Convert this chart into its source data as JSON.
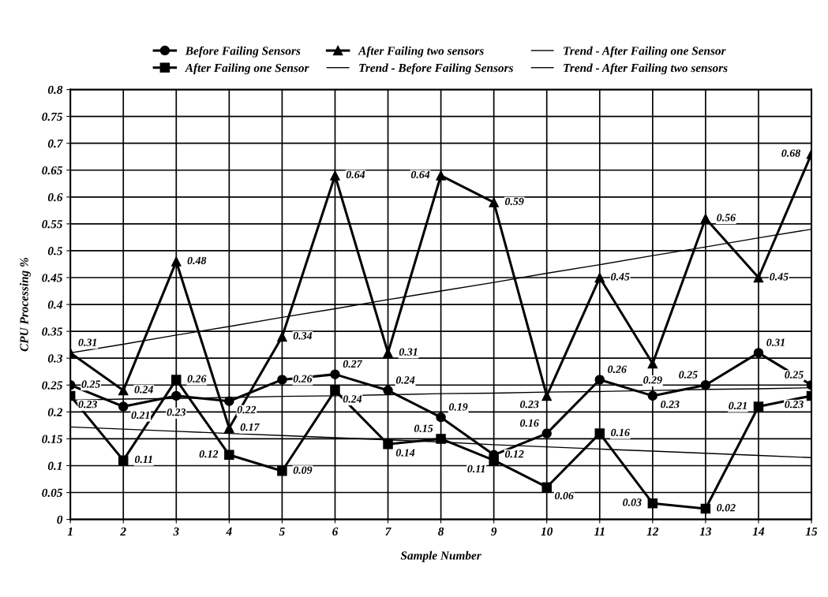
{
  "chart_data": {
    "type": "line",
    "xlabel": "Sample Number",
    "ylabel": "CPU Processing %",
    "x": [
      1,
      2,
      3,
      4,
      5,
      6,
      7,
      8,
      9,
      10,
      11,
      12,
      13,
      14,
      15
    ],
    "xlim": [
      1,
      15
    ],
    "xticks": [
      1,
      2,
      3,
      4,
      5,
      6,
      7,
      8,
      9,
      10,
      11,
      12,
      13,
      14,
      15
    ],
    "ylim": [
      0,
      0.8
    ],
    "yticks": [
      0,
      0.05,
      0.1,
      0.15,
      0.2,
      0.25,
      0.3,
      0.35,
      0.4,
      0.45,
      0.5,
      0.55,
      0.6,
      0.65,
      0.7,
      0.75,
      0.8
    ],
    "grid": true,
    "legend": "top",
    "data_labels": true,
    "line_style": "solid",
    "series": [
      {
        "name": "Before Failing Sensors",
        "color": "#000000",
        "marker": "circle",
        "values": [
          0.25,
          0.21,
          0.23,
          0.22,
          0.26,
          0.27,
          0.24,
          0.19,
          0.12,
          0.16,
          0.26,
          0.23,
          0.25,
          0.31,
          0.25
        ]
      },
      {
        "name": "After Failing one Sensor",
        "color": "#000000",
        "marker": "square",
        "values": [
          0.23,
          0.11,
          0.26,
          0.12,
          0.09,
          0.24,
          0.14,
          0.15,
          0.11,
          0.06,
          0.16,
          0.03,
          0.02,
          0.21,
          0.23
        ]
      },
      {
        "name": "After Failing two sensors",
        "color": "#000000",
        "marker": "triangle",
        "values": [
          0.31,
          0.24,
          0.48,
          0.17,
          0.34,
          0.64,
          0.31,
          0.64,
          0.59,
          0.23,
          0.45,
          0.29,
          0.56,
          0.45,
          0.68
        ]
      },
      {
        "name": "Trend - Before Failing Sensors",
        "color": "#000000",
        "marker": "none",
        "data_labels": false,
        "values": [
          0.222,
          0.224,
          0.225,
          0.227,
          0.229,
          0.23,
          0.232,
          0.234,
          0.235,
          0.237,
          0.238,
          0.24,
          0.242,
          0.243,
          0.245
        ]
      },
      {
        "name": "Trend - After Failing one Sensor",
        "color": "#000000",
        "marker": "none",
        "data_labels": false,
        "values": [
          0.172,
          0.168,
          0.164,
          0.16,
          0.156,
          0.152,
          0.148,
          0.144,
          0.139,
          0.135,
          0.131,
          0.127,
          0.123,
          0.119,
          0.115
        ]
      },
      {
        "name": "Trend - After Failing two sensors",
        "color": "#000000",
        "marker": "none",
        "data_labels": false,
        "values": [
          0.31,
          0.326,
          0.343,
          0.359,
          0.376,
          0.392,
          0.409,
          0.425,
          0.441,
          0.458,
          0.474,
          0.491,
          0.507,
          0.524,
          0.54
        ]
      }
    ]
  }
}
